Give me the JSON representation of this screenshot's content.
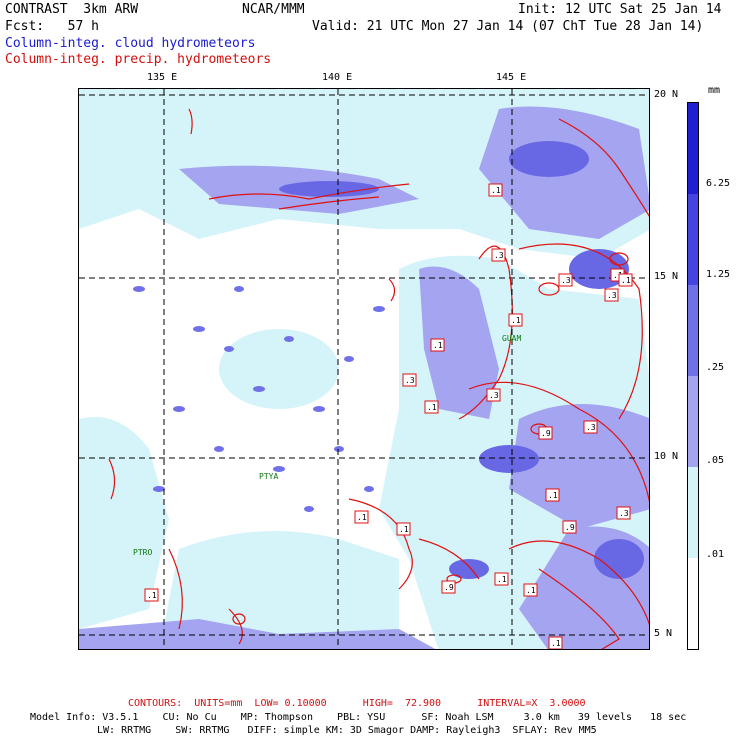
{
  "header": {
    "model": "CONTRAST  3km ARW",
    "fcst": "Fcst:   57 h",
    "center": "NCAR/MMM",
    "init": "Init: 12 UTC Sat 25 Jan 14",
    "valid": "Valid: 21 UTC Mon 27 Jan 14 (07 ChT Tue 28 Jan 14)",
    "field1": "Column-integ. cloud hydrometeors",
    "field2": "Column-integ. precip. hydrometeors",
    "field1_color": "#1a1ad0",
    "field2_color": "#d01010"
  },
  "axes": {
    "lon_labels": [
      "135 E",
      "140 E",
      "145 E"
    ],
    "lat_labels": [
      "20 N",
      "15 N",
      "10 N",
      "5 N"
    ]
  },
  "stations": [
    "GUAM",
    "PTYA",
    "PTRO"
  ],
  "contour_labels": [
    ".1",
    ".3",
    ".1",
    ".3",
    ".1",
    ".3",
    ".1",
    ".3",
    ".9",
    ".3",
    ".1",
    ".3",
    ".1",
    ".9",
    ".1",
    ".1",
    ".1",
    ".9",
    ".1",
    ".1",
    ".1",
    ".3",
    ".1"
  ],
  "colorbar": {
    "unit": "mm",
    "ticks": [
      "6.25",
      "1.25",
      ".25",
      ".05",
      ".01"
    ],
    "colors": [
      "#2020d0",
      "#4444e0",
      "#7070e8",
      "#a4a4f0",
      "#d4f4fa",
      "#ffffff"
    ]
  },
  "footer": {
    "contours": "CONTOURS:  UNITS=mm  LOW= 0.10000      HIGH=  72.900      INTERVAL=X  3.0000",
    "line1": "Model Info: V3.5.1    CU: No Cu    MP: Thompson    PBL: YSU      SF: Noah LSM     3.0 km   39 levels   18 sec",
    "line2": "LW: RRTMG    SW: RRTMG   DIFF: simple KM: 3D Smagor DAMP: Rayleigh3  SFLAY: Rev MM5"
  }
}
